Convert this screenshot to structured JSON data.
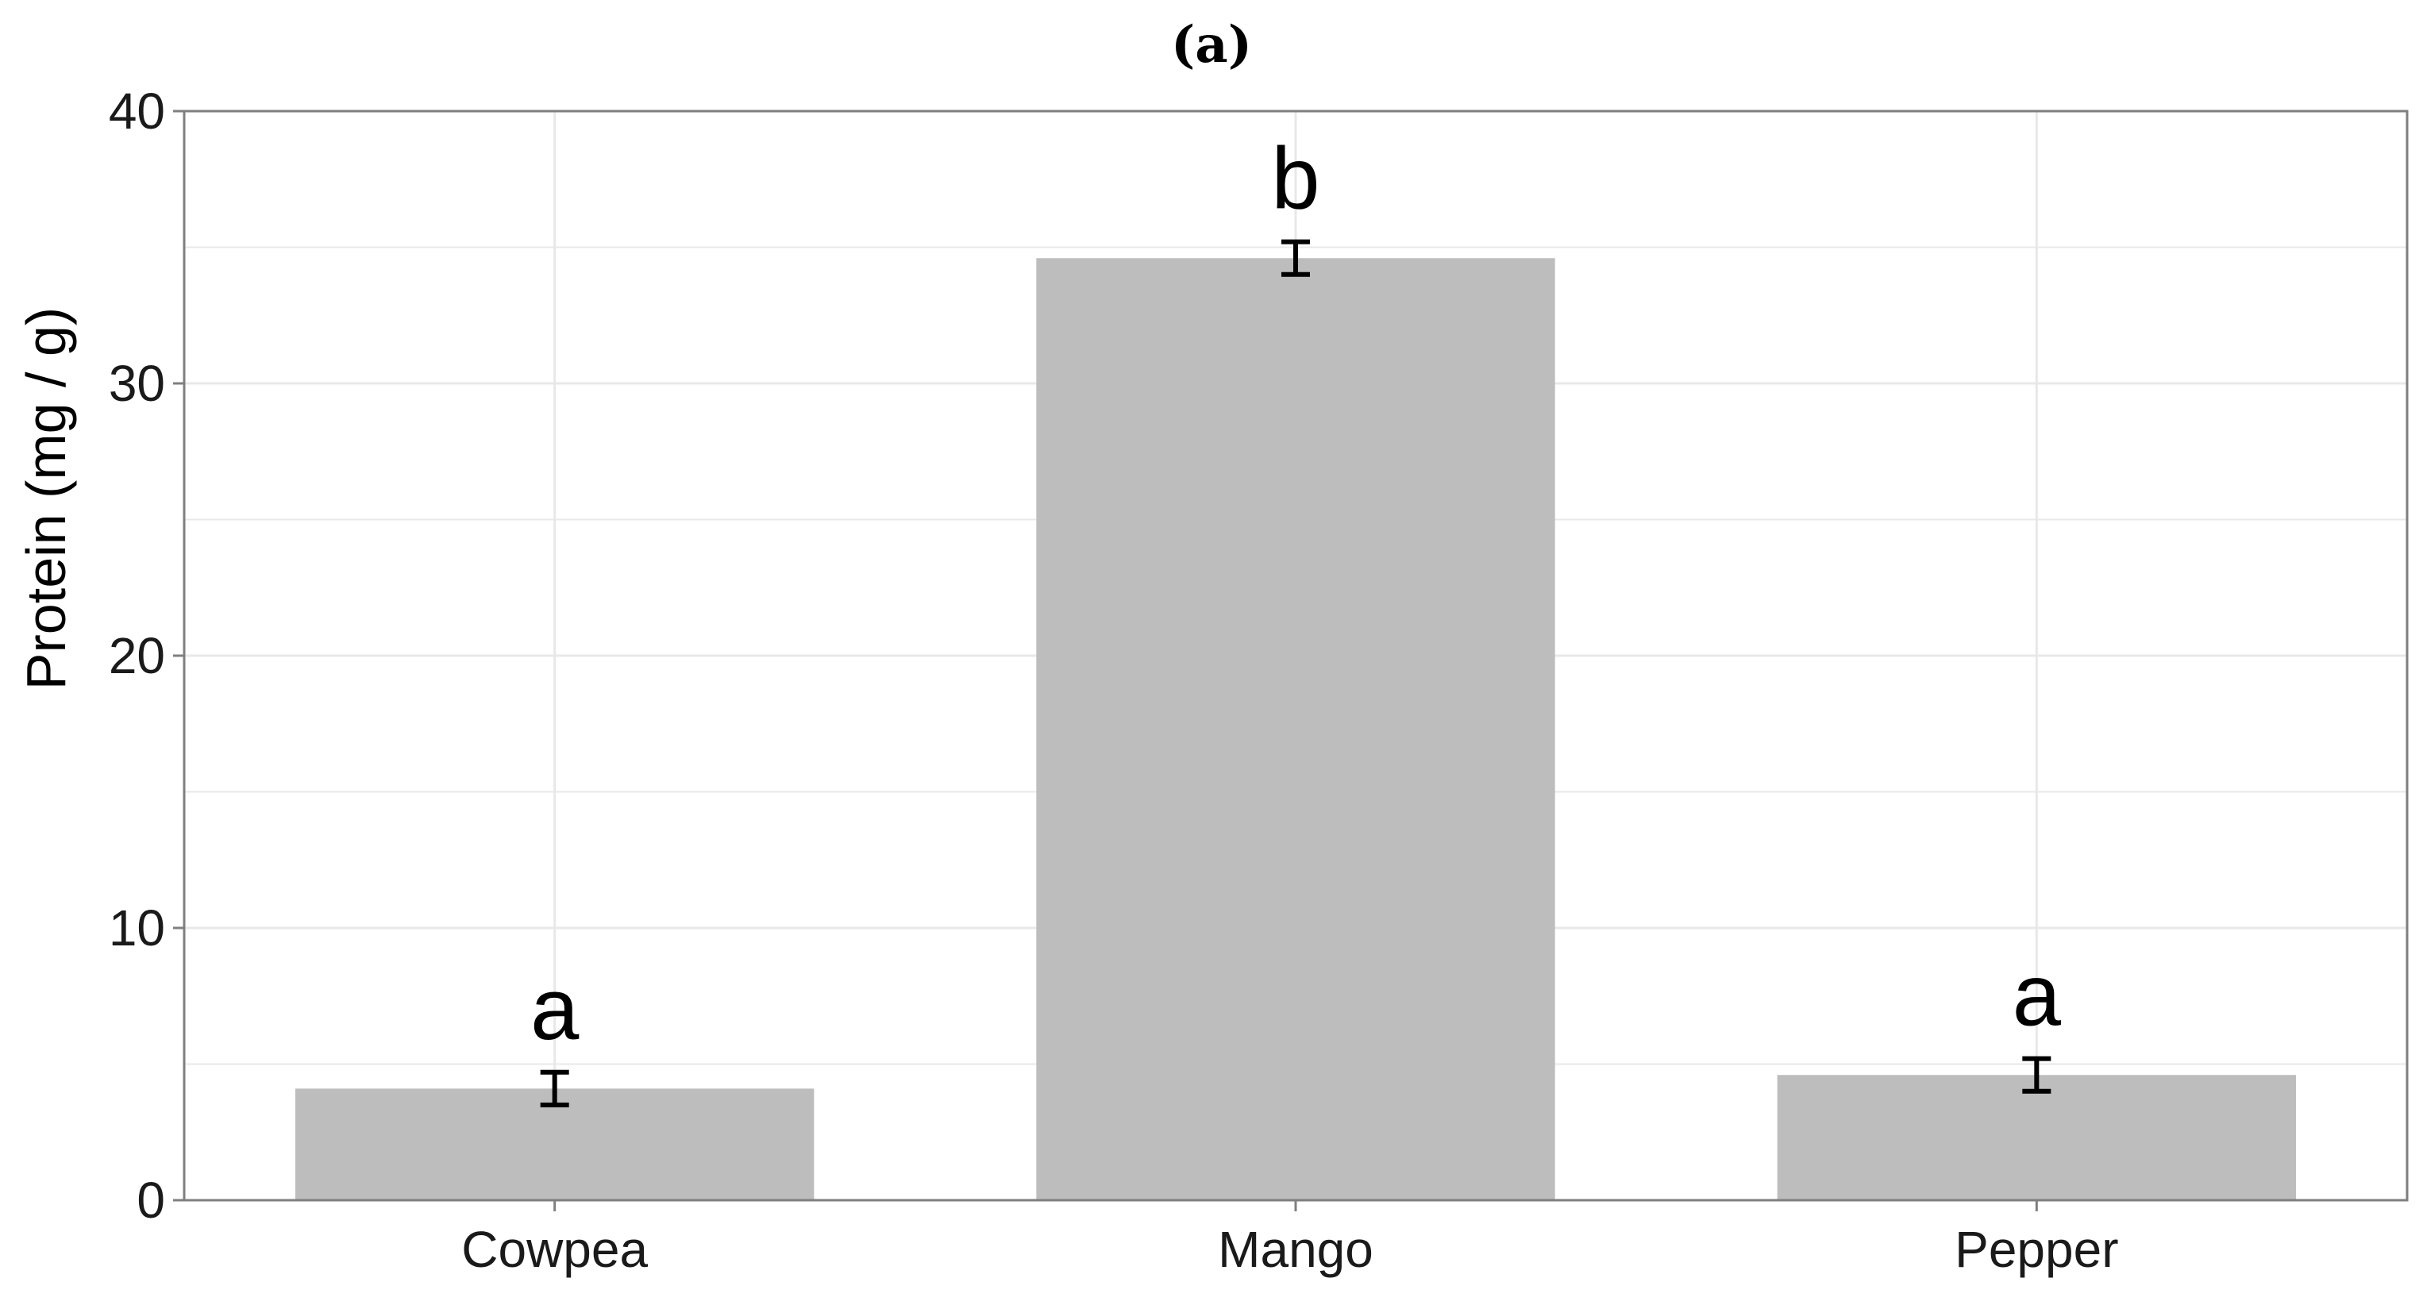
{
  "chart_data": {
    "type": "bar",
    "panel_label": "(a)",
    "title": "",
    "xlabel": "",
    "ylabel": "Protein (mg / g)",
    "categories": [
      "Cowpea",
      "Mango",
      "Pepper"
    ],
    "values": [
      4.1,
      34.6,
      4.6
    ],
    "error": [
      0.6,
      0.6,
      0.6
    ],
    "significance_letters": [
      "a",
      "b",
      "a"
    ],
    "ylim": [
      0,
      40
    ],
    "yticks": [
      0,
      10,
      20,
      30,
      40
    ],
    "grid": true,
    "legend": "none",
    "colors": {
      "bar": "#bdbdbd",
      "grid": "#e8e8e8",
      "frame": "#7f7f7f",
      "errorbar": "#000000"
    }
  }
}
